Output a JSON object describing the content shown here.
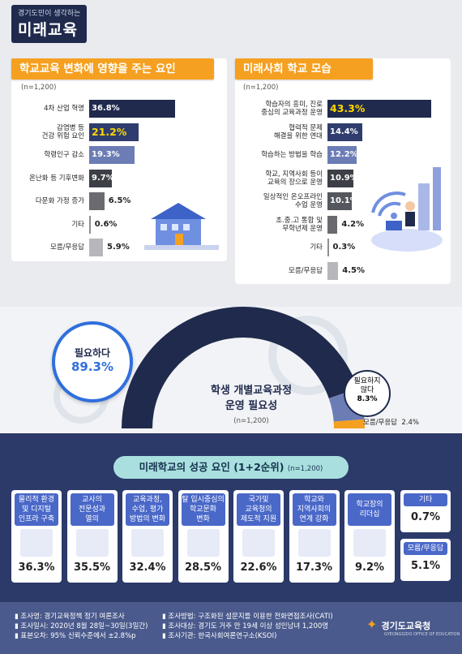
{
  "header": {
    "subtitle": "경기도민이 생각하는",
    "title": "미래교육"
  },
  "chart_data": [
    {
      "type": "bar",
      "title": "학교교육 변화에 영향을 주는 요인",
      "note": "(n=1,200)",
      "categories": [
        "4차 산업 혁명",
        "감염병 등 건강 위험 요인",
        "학령인구 감소",
        "온난화 등 기후변화",
        "다문화 가정 증가",
        "기타",
        "모름/무응답"
      ],
      "values": [
        36.8,
        21.2,
        19.3,
        9.7,
        6.5,
        0.6,
        5.9
      ],
      "unit": "%"
    },
    {
      "type": "bar",
      "title": "미래사회 학교 모습",
      "note": "(n=1,200)",
      "categories": [
        "학습자의 흥미, 진로 중심의 교육과정 운영",
        "협력적 문제 해결을 위한 연대",
        "학습하는 방법을 학습",
        "학교, 지역사회 등이 교육의 장으로 운영",
        "일상적인 온오프라인 수업 운영",
        "초.중.고 통합 및 무학년제 운영",
        "기타",
        "모름/무응답"
      ],
      "values": [
        43.3,
        14.4,
        12.2,
        10.9,
        10.1,
        4.2,
        0.3,
        4.5
      ],
      "unit": "%"
    },
    {
      "type": "pie",
      "title": "학생 개별교육과정 운영 필요성",
      "note": "(n=1,200)",
      "categories": [
        "필요하다",
        "필요하지 않다",
        "모름/무응답"
      ],
      "values": [
        89.3,
        8.3,
        2.4
      ],
      "unit": "%"
    },
    {
      "type": "bar",
      "title": "미래학교의 성공 요인 (1+2순위)",
      "note": "(n=1,200)",
      "categories": [
        "물리적 환경 및 디지털 인프라 구축",
        "교사의 전문성과 열의",
        "교육과정, 수업, 평가 방법의 변화",
        "탈 입시중심의 학교문화 변화",
        "국가및 교육청의 제도적 지원",
        "학교와 지역사회의 연계 강화",
        "학교장의 리더십",
        "기타",
        "모름/무응답"
      ],
      "values": [
        36.3,
        35.5,
        32.4,
        28.5,
        22.6,
        17.3,
        9.2,
        0.7,
        5.1
      ],
      "unit": "%"
    }
  ],
  "factors": {
    "title": "학교교육 변화에 영향을 주는 요인",
    "n": "(n=1,200)",
    "rows": [
      {
        "label": "4차 산업 혁명",
        "value": 36.8,
        "text": "36.8%",
        "color": "#1f2a4d",
        "style": "light"
      },
      {
        "label": "감염병 등\n건강 위험 요인",
        "value": 21.2,
        "text": "21.2%",
        "color": "#2f3d6e",
        "style": "yellow"
      },
      {
        "label": "학령인구 감소",
        "value": 19.3,
        "text": "19.3%",
        "color": "#6c7db5",
        "style": "light"
      },
      {
        "label": "온난화 등 기후변화",
        "value": 9.7,
        "text": "9.7%",
        "color": "#3d3f47",
        "style": "light"
      },
      {
        "label": "다문화 가정 증가",
        "value": 6.5,
        "text": "6.5%",
        "color": "#6a6b70",
        "style": "dark"
      },
      {
        "label": "기타",
        "value": 0.6,
        "text": "0.6%",
        "color": "#8e8f94",
        "style": "dark"
      },
      {
        "label": "모름/무응답",
        "value": 5.9,
        "text": "5.9%",
        "color": "#b6b7bb",
        "style": "dark"
      }
    ]
  },
  "school": {
    "title": "미래사회 학교 모습",
    "n": "(n=1,200)",
    "rows": [
      {
        "label": "학습자의 흥미, 진로\n중심의 교육과정 운영",
        "value": 43.3,
        "text": "43.3%",
        "color": "#1f2a4d",
        "style": "yellow"
      },
      {
        "label": "협력적 문제\n해결을 위한 연대",
        "value": 14.4,
        "text": "14.4%",
        "color": "#2f3d6e",
        "style": "light"
      },
      {
        "label": "학습하는 방법을 학습",
        "value": 12.2,
        "text": "12.2%",
        "color": "#6c7db5",
        "style": "light"
      },
      {
        "label": "학교, 지역사회 등이\n교육의 장으로 운영",
        "value": 10.9,
        "text": "10.9%",
        "color": "#3d3f47",
        "style": "light"
      },
      {
        "label": "일상적인 온오프라인\n수업 운영",
        "value": 10.1,
        "text": "10.1%",
        "color": "#55575e",
        "style": "light"
      },
      {
        "label": "초.중.고 통합 및\n무학년제 운영",
        "value": 4.2,
        "text": "4.2%",
        "color": "#6a6b70",
        "style": "dark"
      },
      {
        "label": "기타",
        "value": 0.3,
        "text": "0.3%",
        "color": "#8e8f94",
        "style": "dark"
      },
      {
        "label": "모름/무응답",
        "value": 4.5,
        "text": "4.5%",
        "color": "#b6b7bb",
        "style": "dark"
      }
    ]
  },
  "need": {
    "title_line1": "학생 개별교육과정",
    "title_line2": "운영 필요성",
    "n": "(n=1,200)",
    "yes_label": "필요하다",
    "yes_value": "89.3%",
    "no_label_1": "필요하지",
    "no_label_2": "않다",
    "no_value": "8.3%",
    "na_label": "모름/무응답",
    "na_value": "2.4%",
    "colors": {
      "yes": "#1f2a4d",
      "no": "#6c7db5",
      "na": "#f5a020"
    }
  },
  "success": {
    "title": "미래학교의 성공 요인 (1+2순위)",
    "n": "(n=1,200)",
    "cards": [
      {
        "label": "물리적 환경\n및 디지털\n인프라 구축",
        "value": "36.3%"
      },
      {
        "label": "교사의\n전문성과\n열의",
        "value": "35.5%"
      },
      {
        "label": "교육과정,\n수업, 평가\n방법의 변화",
        "value": "32.4%"
      },
      {
        "label": "탈 입시중심의\n학교문화\n변화",
        "value": "28.5%"
      },
      {
        "label": "국가및\n교육청의\n제도적 지원",
        "value": "22.6%"
      },
      {
        "label": "학교와\n지역사회의\n연계 강화",
        "value": "17.3%"
      },
      {
        "label": "학교장의\n리더십",
        "value": "9.2%"
      }
    ],
    "other": {
      "label": "기타",
      "value": "0.7%"
    },
    "na": {
      "label": "모름/무응답",
      "value": "5.1%"
    }
  },
  "footer": {
    "left": [
      "조사명: 경기교육정책 정기 여론조사",
      "조사일시: 2020년 8월 28일~30일(3일간)",
      "표본오차: 95% 신뢰수준에서 ±2.8%p"
    ],
    "right": [
      "조사방법: 구조화된 설문지를 이용한 전화면접조사(CATI)",
      "조사대상: 경기도 거주 만 19세 이상 성인남녀 1,200명",
      "조사기관: 한국사회여론연구소(KSOI)"
    ],
    "logo": "경기도교육청",
    "logo_sub": "GYEONGGIDO OFFICE OF EDUCATION"
  }
}
